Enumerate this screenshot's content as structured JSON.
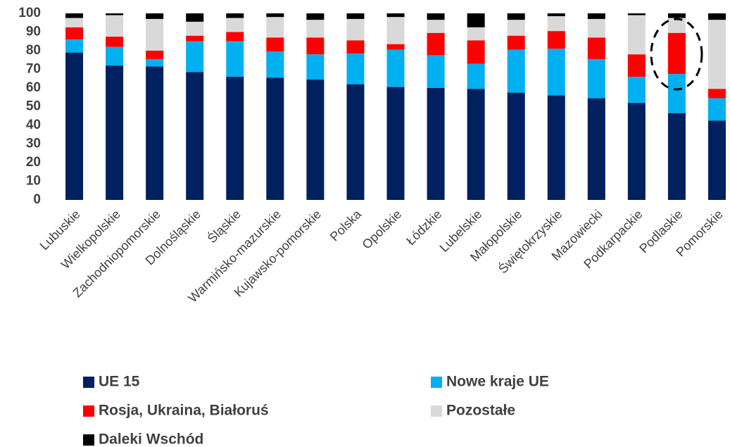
{
  "chart_data": {
    "type": "stacked_bar",
    "categories": [
      "Lubuskie",
      "Wielkopolskie",
      "Zachodniopomorskie",
      "Dolnośląskie",
      "Śląskie",
      "Warmińsko-mazurskie",
      "Kujawsko-pomorskie",
      "Polska",
      "Opolskie",
      "Łódzkie",
      "Lubelskie",
      "Małopolskie",
      "Świętokrzyskie",
      "Mazowiecki",
      "Podkarpackie",
      "Podlaskie",
      "Pomorskie"
    ],
    "series": [
      {
        "name": "UE 15",
        "color": "#002060",
        "values": [
          79,
          72,
          71.5,
          68.5,
          66,
          65.5,
          64.5,
          62,
          60.5,
          60,
          59.5,
          57.5,
          56,
          54.5,
          52,
          46.5,
          42.5
        ]
      },
      {
        "name": "Nowe kraje UE",
        "color": "#00b0f0",
        "values": [
          7,
          10,
          4,
          16.5,
          19,
          14,
          13.5,
          16.5,
          20,
          17.5,
          13.5,
          23,
          25,
          21,
          14,
          21,
          12
        ]
      },
      {
        "name": "Rosja, Ukraina, Białoruś",
        "color": "#ff0000",
        "values": [
          6.5,
          5.5,
          4.5,
          3,
          5,
          7.5,
          9,
          7,
          3,
          12,
          12.5,
          7.5,
          9.5,
          11.5,
          12,
          22,
          5
        ]
      },
      {
        "name": "Pozostałe",
        "color": "#d9d9d9",
        "values": [
          5,
          11.5,
          17,
          7.5,
          7.5,
          11,
          9.5,
          11.5,
          14.5,
          7,
          7,
          8.5,
          8,
          10,
          21,
          8,
          37
        ]
      },
      {
        "name": "Daleki Wschód",
        "color": "#000000",
        "values": [
          2.5,
          1,
          3,
          4.5,
          2.5,
          2,
          3.5,
          3,
          2,
          3.5,
          7.5,
          3.5,
          1.5,
          3,
          1,
          2.5,
          3.5
        ]
      }
    ],
    "ylim": [
      0,
      100
    ],
    "yticks": [
      0,
      10,
      20,
      30,
      40,
      50,
      60,
      70,
      80,
      90,
      100
    ],
    "grid": false
  }
}
